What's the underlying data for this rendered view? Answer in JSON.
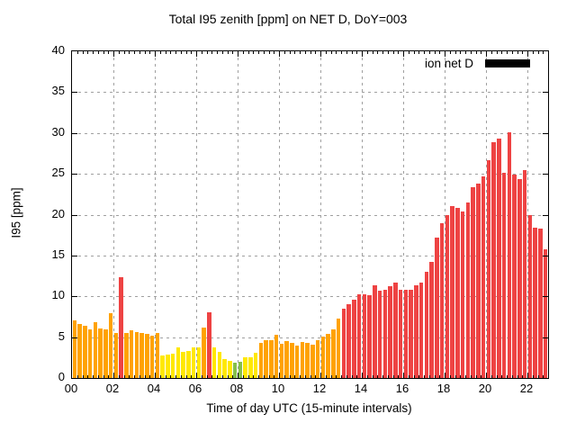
{
  "title": "Total I95 zenith [ppm] on NET D, DoY=003",
  "chart_data": {
    "type": "bar",
    "title": "Total I95 zenith [ppm] on NET D, DoY=003",
    "xlabel": "Time of day UTC (15-minute intervals)",
    "ylabel": "I95 [ppm]",
    "ylim": [
      0,
      40
    ],
    "xlim_hours": [
      0,
      23
    ],
    "interval_minutes": 15,
    "start_hour": 0,
    "grid": true,
    "y_ticks": [
      0,
      5,
      10,
      15,
      20,
      25,
      30,
      35,
      40
    ],
    "x_ticks": [
      {
        "hour": 0,
        "label": "00"
      },
      {
        "hour": 2,
        "label": "02"
      },
      {
        "hour": 4,
        "label": "04"
      },
      {
        "hour": 6,
        "label": "06"
      },
      {
        "hour": 8,
        "label": "08"
      },
      {
        "hour": 10,
        "label": "10"
      },
      {
        "hour": 12,
        "label": "12"
      },
      {
        "hour": 14,
        "label": "14"
      },
      {
        "hour": 16,
        "label": "16"
      },
      {
        "hour": 18,
        "label": "18"
      },
      {
        "hour": 20,
        "label": "20"
      },
      {
        "hour": 22,
        "label": "22"
      }
    ],
    "legend": {
      "label": "ion net D",
      "swatch_color": "#000000",
      "position": "top-right-inside"
    },
    "series": [
      {
        "name": "ion net D",
        "values": [
          7.0,
          6.6,
          6.4,
          5.9,
          6.8,
          6.1,
          6.0,
          7.9,
          5.5,
          12.3,
          5.5,
          5.8,
          5.6,
          5.5,
          5.4,
          5.2,
          5.5,
          2.8,
          2.9,
          3.0,
          3.7,
          3.2,
          3.3,
          3.8,
          3.7,
          6.2,
          8.1,
          3.8,
          3.2,
          2.3,
          2.1,
          1.9,
          2.0,
          2.5,
          2.5,
          3.1,
          4.3,
          4.6,
          4.6,
          5.3,
          4.2,
          4.5,
          4.3,
          4.0,
          4.4,
          4.3,
          4.1,
          4.6,
          5.1,
          5.4,
          6.0,
          7.3,
          8.5,
          9.0,
          9.6,
          10.2,
          10.3,
          10.1,
          11.4,
          10.7,
          10.8,
          11.2,
          11.7,
          10.8,
          10.8,
          10.8,
          11.3,
          11.7,
          13.0,
          14.2,
          17.2,
          19.0,
          19.9,
          21.0,
          20.8,
          20.4,
          21.5,
          23.4,
          23.8,
          24.7,
          26.7,
          28.9,
          29.3,
          25.1,
          30.1,
          24.9,
          24.3,
          25.5,
          19.9,
          18.4,
          18.3,
          15.8
        ]
      }
    ],
    "value_color_rule": [
      {
        "max": 2.05,
        "color": "#86bf4b",
        "name": "green"
      },
      {
        "max": 4.0,
        "color": "#ffe800",
        "name": "yellow"
      },
      {
        "max": 8.0,
        "color": "#ffa200",
        "name": "orange"
      },
      {
        "max": 999,
        "color": "#ee4343",
        "name": "red"
      }
    ],
    "colors": {
      "grid": "#a0a0a0",
      "axis": "#000000",
      "background": "#ffffff",
      "text": "#000000"
    }
  }
}
